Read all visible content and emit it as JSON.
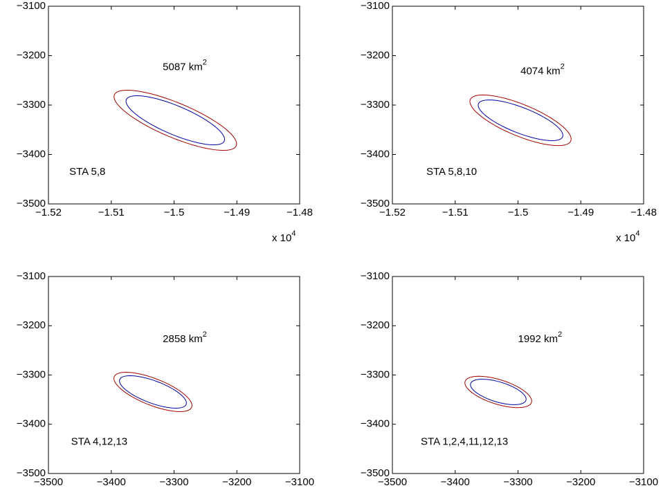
{
  "chart_data": [
    {
      "type": "ellipse",
      "xlim": [
        -1.52,
        -1.48
      ],
      "xticks": [
        {
          "value": -1.52,
          "label": "−1.52"
        },
        {
          "value": -1.51,
          "label": "−1.51"
        },
        {
          "value": -1.5,
          "label": "−1.5"
        },
        {
          "value": -1.49,
          "label": "−1.49"
        },
        {
          "value": -1.48,
          "label": "−1.48"
        }
      ],
      "ylim": [
        -3500,
        -3100
      ],
      "yticks": [
        {
          "value": -3500,
          "label": "−3500"
        },
        {
          "value": -3400,
          "label": "−3400"
        },
        {
          "value": -3300,
          "label": "−3300"
        },
        {
          "value": -3200,
          "label": "−3200"
        },
        {
          "value": -3100,
          "label": "−3100"
        }
      ],
      "x_scale_label": "x 10",
      "x_scale_exponent": "4",
      "annotations": [
        {
          "text": "5087 km",
          "superscript": "2"
        },
        {
          "text": "STA 5,8"
        }
      ],
      "series": [
        {
          "color": "#a00000",
          "center": [
            -1.4998,
            -3330.8
          ],
          "axis1": [
            0.0097,
            -51.7
          ],
          "axis2": [
            -0.0011,
            -32.2
          ]
        },
        {
          "color": "#0000a0",
          "center": [
            -1.4998,
            -3330.8
          ],
          "axis1": [
            0.0078,
            -42
          ],
          "axis2": [
            -0.0009,
            -26.6
          ]
        }
      ]
    },
    {
      "type": "ellipse",
      "xlim": [
        -1.52,
        -1.48
      ],
      "xticks": [
        {
          "value": -1.52,
          "label": "−1.52"
        },
        {
          "value": -1.51,
          "label": "−1.51"
        },
        {
          "value": -1.5,
          "label": "−1.5"
        },
        {
          "value": -1.49,
          "label": "−1.49"
        },
        {
          "value": -1.48,
          "label": "−1.48"
        }
      ],
      "ylim": [
        -3500,
        -3100
      ],
      "yticks": [
        {
          "value": -3500,
          "label": "−3500"
        },
        {
          "value": -3400,
          "label": "−3400"
        },
        {
          "value": -3300,
          "label": "−3300"
        },
        {
          "value": -3200,
          "label": "−3200"
        },
        {
          "value": -3100,
          "label": "−3100"
        }
      ],
      "x_scale_label": "x 10",
      "x_scale_exponent": "4",
      "annotations": [
        {
          "text": "4074 km",
          "superscript": "2"
        },
        {
          "text": "STA 5,8,10"
        }
      ],
      "series": [
        {
          "color": "#a00000",
          "center": [
            -1.4996,
            -3330.8
          ],
          "axis1": [
            0.008,
            -42
          ],
          "axis2": [
            -0.001,
            -29.4
          ]
        },
        {
          "color": "#0000a0",
          "center": [
            -1.4996,
            -3330.8
          ],
          "axis1": [
            0.0067,
            -33.6
          ],
          "axis2": [
            -0.0008,
            -23.8
          ]
        }
      ]
    },
    {
      "type": "ellipse",
      "xlim": [
        -3500,
        -3100
      ],
      "xticks": [
        {
          "value": -3500,
          "label": "−3500"
        },
        {
          "value": -3400,
          "label": "−3400"
        },
        {
          "value": -3300,
          "label": "−3300"
        },
        {
          "value": -3200,
          "label": "−3200"
        },
        {
          "value": -3100,
          "label": "−3100"
        }
      ],
      "ylim": [
        -3500,
        -3100
      ],
      "yticks": [
        {
          "value": -3500,
          "label": "−3500"
        },
        {
          "value": -3400,
          "label": "−3400"
        },
        {
          "value": -3300,
          "label": "−3300"
        },
        {
          "value": -3200,
          "label": "−3200"
        },
        {
          "value": -3100,
          "label": "−3100"
        }
      ],
      "annotations": [
        {
          "text": "2858 km",
          "superscript": "2"
        },
        {
          "text": "STA 4,12,13"
        }
      ],
      "series": [
        {
          "color": "#a00000",
          "center": [
            -3333.6,
            -3334.4
          ],
          "axis1": [
            61.7,
            -30.9
          ],
          "axis2": [
            -7.7,
            -25.3
          ]
        },
        {
          "color": "#0000a0",
          "center": [
            -3333.6,
            -3334.4
          ],
          "axis1": [
            52.9,
            -25.3
          ],
          "axis2": [
            -6.6,
            -21.1
          ]
        }
      ]
    },
    {
      "type": "ellipse",
      "xlim": [
        -3500,
        -3100
      ],
      "xticks": [
        {
          "value": -3500,
          "label": "−3500"
        },
        {
          "value": -3400,
          "label": "−3400"
        },
        {
          "value": -3300,
          "label": "−3300"
        },
        {
          "value": -3200,
          "label": "−3200"
        },
        {
          "value": -3100,
          "label": "−3100"
        }
      ],
      "ylim": [
        -3500,
        -3100
      ],
      "yticks": [
        {
          "value": -3500,
          "label": "−3500"
        },
        {
          "value": -3400,
          "label": "−3400"
        },
        {
          "value": -3300,
          "label": "−3300"
        },
        {
          "value": -3200,
          "label": "−3200"
        },
        {
          "value": -3100,
          "label": "−3100"
        }
      ],
      "annotations": [
        {
          "text": "1992 km",
          "superscript": "2"
        },
        {
          "text": "STA 1,2,4,11,12,13"
        }
      ],
      "series": [
        {
          "color": "#a00000",
          "center": [
            -3331.4,
            -3334.4
          ],
          "axis1": [
            52.9,
            -21.1
          ],
          "axis2": [
            -5.5,
            -23.9
          ]
        },
        {
          "color": "#0000a0",
          "center": [
            -3331.4,
            -3334.4
          ],
          "axis1": [
            44.1,
            -16.8
          ],
          "axis2": [
            -4.4,
            -19.6
          ]
        }
      ]
    }
  ]
}
